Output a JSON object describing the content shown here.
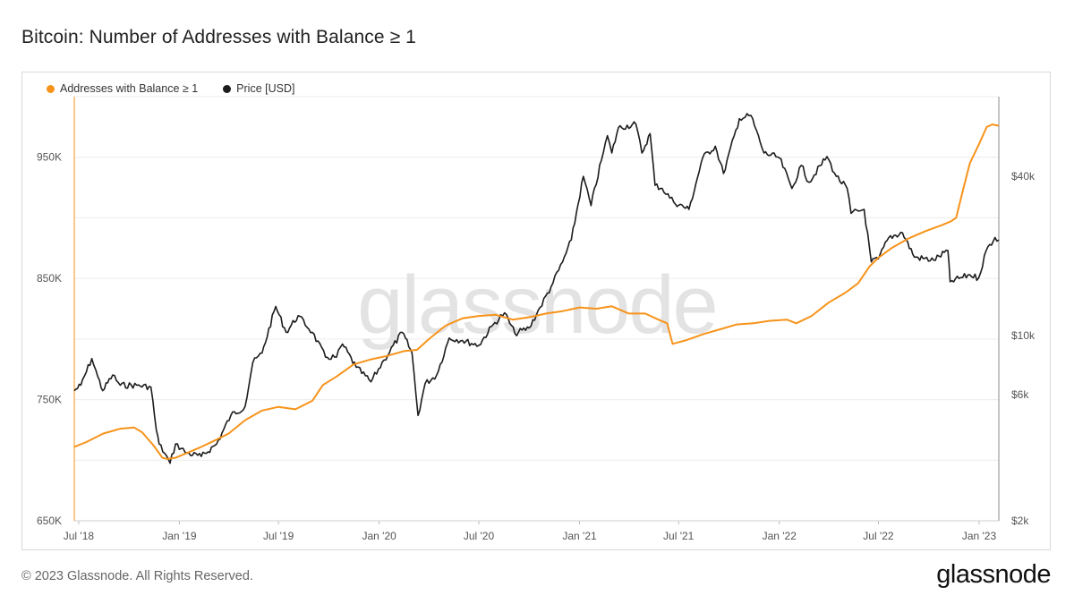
{
  "title": "Bitcoin: Number of Addresses with Balance ≥ 1",
  "footer": {
    "copyright": "© 2023 Glassnode. All Rights Reserved.",
    "brand": "glassnode"
  },
  "watermark": "glassnode",
  "colors": {
    "addresses": "#f7931a",
    "price": "#1c1c1c",
    "grid": "#ececec"
  },
  "legend": {
    "addresses_label": "Addresses with Balance ≥ 1",
    "price_label": "Price [USD]",
    "placement": "top-left"
  },
  "chart_data": {
    "type": "line",
    "title": "Bitcoin: Number of Addresses with Balance ≥ 1",
    "x_ticks": [
      "Jul '18",
      "Jan '19",
      "Jul '19",
      "Jan '20",
      "Jul '20",
      "Jan '21",
      "Jul '21",
      "Jan '22",
      "Jul '22",
      "Jan '23"
    ],
    "x_range": [
      "2018-06-23",
      "2023-02-06"
    ],
    "y_left": {
      "scale": "linear",
      "range": [
        650000,
        1000000
      ],
      "ticks": [
        650000,
        750000,
        850000,
        950000
      ],
      "tick_labels": [
        "650K",
        "750K",
        "850K",
        "950K"
      ]
    },
    "y_right": {
      "scale": "log",
      "range": [
        2000,
        80000
      ],
      "ticks": [
        2000,
        6000,
        10000,
        40000
      ],
      "tick_labels": [
        "$2k",
        "$6k",
        "$10k",
        "$40k"
      ]
    },
    "grid": true,
    "series": [
      {
        "name": "Addresses with Balance ≥ 1",
        "axis": "left",
        "points": [
          [
            "2018-06-23",
            711000
          ],
          [
            "2018-07-15",
            715000
          ],
          [
            "2018-08-15",
            722000
          ],
          [
            "2018-09-15",
            726000
          ],
          [
            "2018-10-10",
            727000
          ],
          [
            "2018-10-25",
            723000
          ],
          [
            "2018-11-15",
            712000
          ],
          [
            "2018-12-01",
            702000
          ],
          [
            "2018-12-10",
            701000
          ],
          [
            "2018-12-25",
            702000
          ],
          [
            "2019-01-15",
            706000
          ],
          [
            "2019-02-10",
            711000
          ],
          [
            "2019-03-10",
            717000
          ],
          [
            "2019-04-01",
            722000
          ],
          [
            "2019-05-01",
            733000
          ],
          [
            "2019-06-01",
            741000
          ],
          [
            "2019-07-01",
            744000
          ],
          [
            "2019-08-01",
            742000
          ],
          [
            "2019-09-01",
            749000
          ],
          [
            "2019-09-20",
            762000
          ],
          [
            "2019-10-15",
            769000
          ],
          [
            "2019-11-15",
            779000
          ],
          [
            "2019-12-15",
            783000
          ],
          [
            "2020-01-15",
            786000
          ],
          [
            "2020-02-15",
            790000
          ],
          [
            "2020-03-10",
            791000
          ],
          [
            "2020-04-01",
            800000
          ],
          [
            "2020-05-01",
            811000
          ],
          [
            "2020-06-01",
            817000
          ],
          [
            "2020-07-01",
            819000
          ],
          [
            "2020-08-01",
            820000
          ],
          [
            "2020-09-01",
            816000
          ],
          [
            "2020-10-01",
            818000
          ],
          [
            "2020-11-01",
            821000
          ],
          [
            "2020-12-01",
            823000
          ],
          [
            "2021-01-01",
            826000
          ],
          [
            "2021-02-01",
            825000
          ],
          [
            "2021-03-01",
            827000
          ],
          [
            "2021-04-01",
            821000
          ],
          [
            "2021-05-01",
            821000
          ],
          [
            "2021-05-25",
            816000
          ],
          [
            "2021-06-10",
            813000
          ],
          [
            "2021-06-20",
            796000
          ],
          [
            "2021-07-15",
            799000
          ],
          [
            "2021-08-15",
            804000
          ],
          [
            "2021-09-15",
            808000
          ],
          [
            "2021-10-15",
            812000
          ],
          [
            "2021-11-15",
            813000
          ],
          [
            "2021-12-15",
            815000
          ],
          [
            "2022-01-15",
            816000
          ],
          [
            "2022-02-01",
            813000
          ],
          [
            "2022-03-01",
            819000
          ],
          [
            "2022-04-01",
            830000
          ],
          [
            "2022-05-01",
            838000
          ],
          [
            "2022-05-25",
            846000
          ],
          [
            "2022-06-15",
            860000
          ],
          [
            "2022-07-01",
            867000
          ],
          [
            "2022-07-25",
            875000
          ],
          [
            "2022-08-25",
            883000
          ],
          [
            "2022-09-25",
            889000
          ],
          [
            "2022-10-25",
            894000
          ],
          [
            "2022-11-10",
            897000
          ],
          [
            "2022-11-20",
            900000
          ],
          [
            "2022-12-01",
            920000
          ],
          [
            "2022-12-15",
            945000
          ],
          [
            "2023-01-01",
            961000
          ],
          [
            "2023-01-15",
            975000
          ],
          [
            "2023-01-25",
            977000
          ],
          [
            "2023-02-06",
            976000
          ]
        ]
      },
      {
        "name": "Price [USD]",
        "axis": "right",
        "points": [
          [
            "2018-06-23",
            6200
          ],
          [
            "2018-07-05",
            6500
          ],
          [
            "2018-07-25",
            8200
          ],
          [
            "2018-08-05",
            7000
          ],
          [
            "2018-08-14",
            6200
          ],
          [
            "2018-09-01",
            7100
          ],
          [
            "2018-09-15",
            6500
          ],
          [
            "2018-10-15",
            6500
          ],
          [
            "2018-11-10",
            6400
          ],
          [
            "2018-11-20",
            4400
          ],
          [
            "2018-11-25",
            3900
          ],
          [
            "2018-12-05",
            3600
          ],
          [
            "2018-12-15",
            3300
          ],
          [
            "2018-12-25",
            3900
          ],
          [
            "2019-01-15",
            3600
          ],
          [
            "2019-02-10",
            3500
          ],
          [
            "2019-03-10",
            3900
          ],
          [
            "2019-04-05",
            5000
          ],
          [
            "2019-05-01",
            5400
          ],
          [
            "2019-05-15",
            7900
          ],
          [
            "2019-06-01",
            8600
          ],
          [
            "2019-06-26",
            12900
          ],
          [
            "2019-07-15",
            10300
          ],
          [
            "2019-08-06",
            11900
          ],
          [
            "2019-09-01",
            10300
          ],
          [
            "2019-09-25",
            8300
          ],
          [
            "2019-10-15",
            8300
          ],
          [
            "2019-10-26",
            9300
          ],
          [
            "2019-11-20",
            7600
          ],
          [
            "2019-12-17",
            6700
          ],
          [
            "2020-01-10",
            8100
          ],
          [
            "2020-02-12",
            10300
          ],
          [
            "2020-03-01",
            8600
          ],
          [
            "2020-03-12",
            5000
          ],
          [
            "2020-03-25",
            6600
          ],
          [
            "2020-04-15",
            7100
          ],
          [
            "2020-05-08",
            9800
          ],
          [
            "2020-06-01",
            9600
          ],
          [
            "2020-07-01",
            9200
          ],
          [
            "2020-07-27",
            11000
          ],
          [
            "2020-08-17",
            12200
          ],
          [
            "2020-09-05",
            10200
          ],
          [
            "2020-10-01",
            10700
          ],
          [
            "2020-10-21",
            12800
          ],
          [
            "2020-11-10",
            15300
          ],
          [
            "2020-12-01",
            19000
          ],
          [
            "2020-12-17",
            23000
          ],
          [
            "2021-01-08",
            40000
          ],
          [
            "2021-01-22",
            31000
          ],
          [
            "2021-02-10",
            46000
          ],
          [
            "2021-02-21",
            57000
          ],
          [
            "2021-03-01",
            49000
          ],
          [
            "2021-03-13",
            61000
          ],
          [
            "2021-04-14",
            63000
          ],
          [
            "2021-04-25",
            49000
          ],
          [
            "2021-05-10",
            58000
          ],
          [
            "2021-05-19",
            37000
          ],
          [
            "2021-06-01",
            36000
          ],
          [
            "2021-06-22",
            32000
          ],
          [
            "2021-07-20",
            30000
          ],
          [
            "2021-08-14",
            47000
          ],
          [
            "2021-09-06",
            52000
          ],
          [
            "2021-09-21",
            41000
          ],
          [
            "2021-10-20",
            66000
          ],
          [
            "2021-11-10",
            68000
          ],
          [
            "2021-12-04",
            49000
          ],
          [
            "2022-01-01",
            47000
          ],
          [
            "2022-01-24",
            36000
          ],
          [
            "2022-02-10",
            44000
          ],
          [
            "2022-02-24",
            38000
          ],
          [
            "2022-03-29",
            47500
          ],
          [
            "2022-04-15",
            40000
          ],
          [
            "2022-05-05",
            36000
          ],
          [
            "2022-05-12",
            29000
          ],
          [
            "2022-06-05",
            30000
          ],
          [
            "2022-06-18",
            19000
          ],
          [
            "2022-07-01",
            19500
          ],
          [
            "2022-07-20",
            23500
          ],
          [
            "2022-08-14",
            24500
          ],
          [
            "2022-09-05",
            19800
          ],
          [
            "2022-10-10",
            19300
          ],
          [
            "2022-11-05",
            21000
          ],
          [
            "2022-11-09",
            16000
          ],
          [
            "2022-12-15",
            17000
          ],
          [
            "2022-12-31",
            16500
          ],
          [
            "2023-01-14",
            21000
          ],
          [
            "2023-01-30",
            23500
          ],
          [
            "2023-02-06",
            23000
          ]
        ]
      }
    ]
  }
}
